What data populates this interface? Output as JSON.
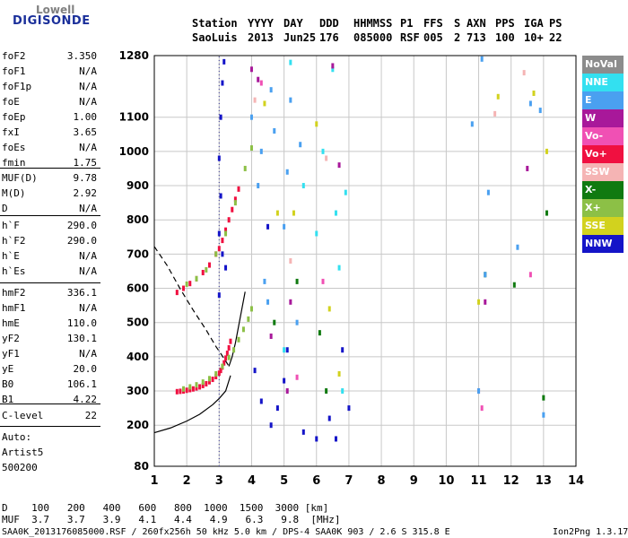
{
  "logo": {
    "top": "Lowell",
    "bottom": "DIGISONDE"
  },
  "header": {
    "labels": [
      "Station",
      "YYYY",
      "DAY",
      "DDD",
      "HHMMSS",
      "P1",
      "FFS",
      "S",
      "AXN",
      "PPS",
      "IGA",
      "PS"
    ],
    "values": [
      "SaoLuis",
      "2013",
      "Jun25",
      "176",
      "085000",
      "RSF",
      "005",
      "2",
      "713",
      "100",
      "10+",
      "22"
    ]
  },
  "params_group1": [
    {
      "name": "foF2",
      "value": "3.350"
    },
    {
      "name": "foF1",
      "value": "N/A"
    },
    {
      "name": "foF1p",
      "value": "N/A"
    },
    {
      "name": "foE",
      "value": "N/A"
    },
    {
      "name": "foEp",
      "value": "1.00"
    },
    {
      "name": "fxI",
      "value": "3.65"
    },
    {
      "name": "foEs",
      "value": "N/A"
    },
    {
      "name": "fmin",
      "value": "1.75"
    }
  ],
  "params_group2": [
    {
      "name": "MUF(D)",
      "value": "9.78"
    },
    {
      "name": "M(D)",
      "value": "2.92"
    },
    {
      "name": "D",
      "value": "N/A"
    }
  ],
  "params_group3": [
    {
      "name": "h`F",
      "value": "290.0"
    },
    {
      "name": "h`F2",
      "value": "290.0"
    },
    {
      "name": "h`E",
      "value": "N/A"
    },
    {
      "name": "h`Es",
      "value": "N/A"
    }
  ],
  "params_group4": [
    {
      "name": "hmF2",
      "value": "336.1"
    },
    {
      "name": "hmF1",
      "value": "N/A"
    },
    {
      "name": "hmE",
      "value": "110.0"
    },
    {
      "name": "yF2",
      "value": "130.1"
    },
    {
      "name": "yF1",
      "value": "N/A"
    },
    {
      "name": "yE",
      "value": "20.0"
    },
    {
      "name": "B0",
      "value": "106.1"
    },
    {
      "name": "B1",
      "value": "4.22"
    }
  ],
  "params_group5": [
    {
      "name": "C-level",
      "value": "22"
    }
  ],
  "auto_lines": [
    "Auto:",
    "Artist5",
    "500200"
  ],
  "legend": [
    {
      "label": "NoVal",
      "color": "#8c8c8c"
    },
    {
      "label": "NNE",
      "color": "#33e0f0"
    },
    {
      "label": "E",
      "color": "#4aa0f0"
    },
    {
      "label": "W",
      "color": "#a8189a"
    },
    {
      "label": "Vo-",
      "color": "#f050b4"
    },
    {
      "label": "Vo+",
      "color": "#f01040"
    },
    {
      "label": "SSW",
      "color": "#f5b4b4"
    },
    {
      "label": "X-",
      "color": "#107a10"
    },
    {
      "label": "X+",
      "color": "#8cc046"
    },
    {
      "label": "SSE",
      "color": "#d2d21e"
    },
    {
      "label": "NNW",
      "color": "#1414c8"
    }
  ],
  "muf_table": {
    "d_label": "D",
    "d_values": [
      "100",
      "200",
      "400",
      "600",
      "800",
      "1000",
      "1500",
      "3000"
    ],
    "d_unit": "[km]",
    "muf_label": "MUF",
    "muf_values": [
      "3.7",
      "3.7",
      "3.9",
      "4.1",
      "4.4",
      "4.9",
      "6.3",
      "9.8"
    ],
    "muf_unit": "[MHz]"
  },
  "footer": {
    "left": "SAA0K_2013176085000.RSF / 260fx256h 50 kHz 5.0 km / DPS-4 SAA0K 903 / 2.6 S 315.8 E",
    "right": "Ion2Png 1.3.17"
  },
  "chart_data": {
    "type": "scatter",
    "title": "",
    "xlabel": "",
    "ylabel": "",
    "xlim": [
      1,
      14
    ],
    "ylim": [
      80,
      1280
    ],
    "x_ticks": [
      1,
      2,
      3,
      4,
      5,
      6,
      7,
      8,
      9,
      10,
      11,
      12,
      13,
      14
    ],
    "y_ticks": [
      80,
      200,
      300,
      400,
      500,
      600,
      700,
      800,
      900,
      1000,
      1100,
      1280
    ],
    "grid": true,
    "legend_position": "right",
    "series": [
      {
        "color": "#f01040",
        "points": [
          [
            1.7,
            298
          ],
          [
            1.8,
            299
          ],
          [
            1.9,
            300
          ],
          [
            2.0,
            302
          ],
          [
            2.1,
            304
          ],
          [
            2.2,
            306
          ],
          [
            2.3,
            309
          ],
          [
            2.4,
            312
          ],
          [
            2.5,
            316
          ],
          [
            2.6,
            321
          ],
          [
            2.7,
            327
          ],
          [
            2.8,
            334
          ],
          [
            2.9,
            342
          ],
          [
            3.0,
            352
          ],
          [
            3.05,
            360
          ],
          [
            3.1,
            370
          ],
          [
            3.15,
            382
          ],
          [
            3.2,
            396
          ],
          [
            3.25,
            410
          ],
          [
            3.3,
            426
          ],
          [
            3.35,
            445
          ]
        ]
      },
      {
        "color": "#8cc046",
        "points": [
          [
            1.9,
            306
          ],
          [
            2.1,
            312
          ],
          [
            2.3,
            318
          ],
          [
            2.5,
            326
          ],
          [
            2.7,
            336
          ],
          [
            2.9,
            350
          ],
          [
            3.1,
            372
          ],
          [
            3.3,
            398
          ],
          [
            3.45,
            420
          ],
          [
            3.6,
            450
          ],
          [
            3.75,
            480
          ],
          [
            3.9,
            510
          ],
          [
            4.0,
            540
          ]
        ]
      },
      {
        "color": "#f01040",
        "points": [
          [
            1.7,
            588
          ],
          [
            1.9,
            600
          ],
          [
            2.1,
            614
          ],
          [
            2.3,
            628
          ],
          [
            2.5,
            646
          ],
          [
            2.7,
            668
          ],
          [
            2.9,
            700
          ],
          [
            3.0,
            716
          ],
          [
            3.1,
            740
          ],
          [
            3.2,
            770
          ],
          [
            3.3,
            800
          ],
          [
            3.4,
            830
          ],
          [
            3.5,
            860
          ],
          [
            3.6,
            890
          ]
        ]
      },
      {
        "color": "#8cc046",
        "points": [
          [
            2.0,
            612
          ],
          [
            2.3,
            628
          ],
          [
            2.6,
            654
          ],
          [
            2.9,
            700
          ],
          [
            3.2,
            760
          ],
          [
            3.5,
            850
          ],
          [
            3.8,
            950
          ],
          [
            4.0,
            1010
          ]
        ]
      },
      {
        "color": "#1414c8",
        "points": [
          [
            3.0,
            580
          ],
          [
            3.0,
            760
          ],
          [
            3.05,
            870
          ],
          [
            3.0,
            980
          ],
          [
            3.05,
            1100
          ],
          [
            3.1,
            1200
          ],
          [
            3.15,
            1262
          ],
          [
            3.2,
            660
          ],
          [
            3.1,
            700
          ]
        ]
      },
      {
        "color": "#4aa0f0",
        "points": [
          [
            4.0,
            1100
          ],
          [
            4.2,
            900
          ],
          [
            4.3,
            1000
          ],
          [
            4.4,
            620
          ],
          [
            4.5,
            560
          ],
          [
            4.6,
            1180
          ],
          [
            4.7,
            1060
          ],
          [
            5.0,
            780
          ],
          [
            5.1,
            940
          ],
          [
            5.2,
            1150
          ],
          [
            5.4,
            500
          ],
          [
            5.5,
            1020
          ]
        ]
      },
      {
        "color": "#33e0f0",
        "points": [
          [
            5.0,
            420
          ],
          [
            5.2,
            1260
          ],
          [
            5.6,
            900
          ],
          [
            6.0,
            760
          ],
          [
            6.2,
            1000
          ],
          [
            6.5,
            1240
          ],
          [
            6.6,
            820
          ],
          [
            6.7,
            660
          ],
          [
            6.8,
            300
          ],
          [
            6.9,
            880
          ]
        ]
      },
      {
        "color": "#1414c8",
        "points": [
          [
            4.1,
            360
          ],
          [
            4.3,
            270
          ],
          [
            4.5,
            780
          ],
          [
            4.6,
            200
          ],
          [
            4.8,
            250
          ],
          [
            5.0,
            330
          ],
          [
            5.1,
            420
          ],
          [
            5.6,
            180
          ],
          [
            6.0,
            160
          ],
          [
            6.4,
            220
          ],
          [
            6.6,
            160
          ],
          [
            6.8,
            420
          ],
          [
            7.0,
            250
          ]
        ]
      },
      {
        "color": "#a8189a",
        "points": [
          [
            4.0,
            1240
          ],
          [
            4.2,
            1210
          ],
          [
            4.6,
            460
          ],
          [
            5.1,
            300
          ],
          [
            5.2,
            560
          ],
          [
            6.5,
            1250
          ],
          [
            6.7,
            960
          ],
          [
            11.0,
            300
          ],
          [
            11.2,
            560
          ],
          [
            12.5,
            950
          ]
        ]
      },
      {
        "color": "#d2d21e",
        "points": [
          [
            4.4,
            1140
          ],
          [
            4.8,
            820
          ],
          [
            5.3,
            820
          ],
          [
            6.0,
            1080
          ],
          [
            6.4,
            540
          ],
          [
            6.7,
            350
          ],
          [
            11.0,
            560
          ],
          [
            11.6,
            1160
          ],
          [
            12.7,
            1170
          ],
          [
            13.1,
            1000
          ]
        ]
      },
      {
        "color": "#107a10",
        "points": [
          [
            4.7,
            500
          ],
          [
            5.4,
            620
          ],
          [
            6.1,
            470
          ],
          [
            6.3,
            300
          ],
          [
            11.2,
            640
          ],
          [
            12.1,
            610
          ],
          [
            13.0,
            280
          ],
          [
            13.1,
            820
          ]
        ]
      },
      {
        "color": "#4aa0f0",
        "points": [
          [
            10.8,
            1080
          ],
          [
            11.0,
            300
          ],
          [
            11.1,
            1270
          ],
          [
            11.2,
            640
          ],
          [
            11.3,
            880
          ],
          [
            12.2,
            720
          ],
          [
            12.9,
            1120
          ],
          [
            12.6,
            1140
          ],
          [
            13.0,
            230
          ]
        ]
      },
      {
        "color": "#f050b4",
        "points": [
          [
            4.3,
            1200
          ],
          [
            5.4,
            340
          ],
          [
            6.2,
            620
          ],
          [
            11.1,
            250
          ],
          [
            12.6,
            640
          ]
        ]
      },
      {
        "color": "#f5b4b4",
        "points": [
          [
            4.1,
            1150
          ],
          [
            5.2,
            680
          ],
          [
            6.3,
            980
          ],
          [
            11.5,
            1110
          ],
          [
            12.4,
            1230
          ]
        ]
      }
    ],
    "lines": [
      {
        "style": "solid",
        "points": [
          [
            1.0,
            178
          ],
          [
            1.5,
            192
          ],
          [
            2.0,
            212
          ],
          [
            2.4,
            232
          ],
          [
            2.8,
            260
          ],
          [
            3.0,
            278
          ],
          [
            3.2,
            300
          ],
          [
            3.35,
            345
          ]
        ]
      },
      {
        "style": "dashed",
        "points": [
          [
            1.0,
            722
          ],
          [
            1.4,
            666
          ],
          [
            1.8,
            598
          ],
          [
            2.2,
            536
          ],
          [
            2.6,
            478
          ],
          [
            2.9,
            430
          ],
          [
            3.1,
            402
          ],
          [
            3.25,
            380
          ],
          [
            3.3,
            372
          ]
        ]
      },
      {
        "style": "solid",
        "points": [
          [
            3.3,
            372
          ],
          [
            3.4,
            400
          ],
          [
            3.5,
            440
          ],
          [
            3.6,
            490
          ],
          [
            3.7,
            540
          ],
          [
            3.8,
            590
          ]
        ]
      },
      {
        "style": "dotted",
        "points": [
          [
            3.0,
            80
          ],
          [
            3.0,
            1280
          ]
        ]
      }
    ]
  }
}
